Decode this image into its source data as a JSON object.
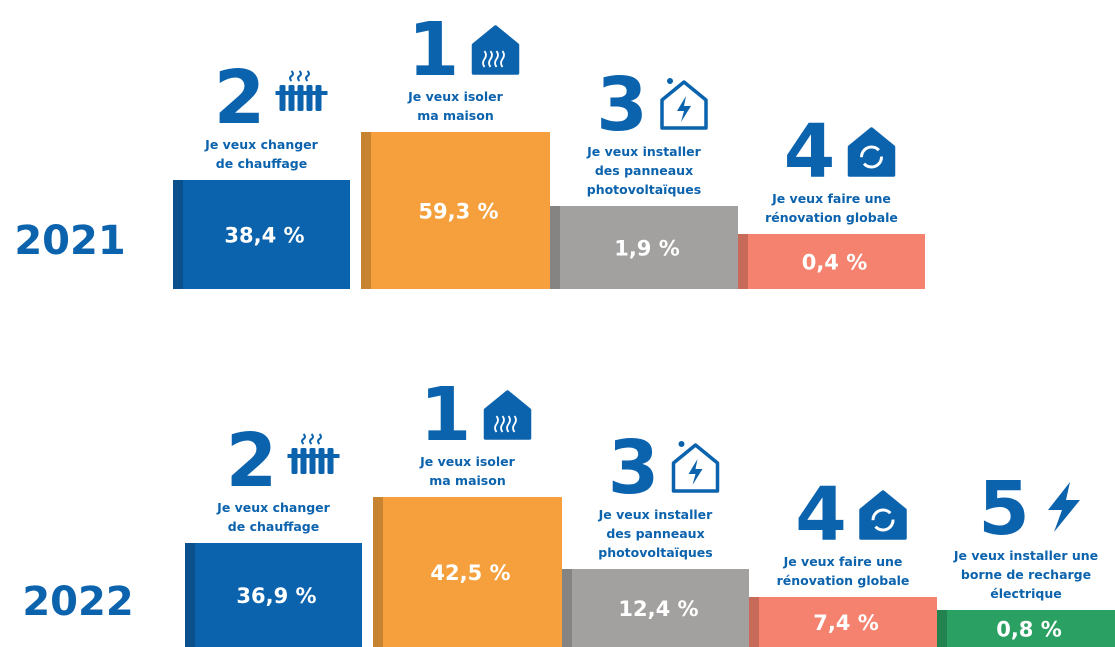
{
  "podiums": [
    {
      "year": "2021",
      "items": [
        {
          "rank": "2",
          "label": [
            "Je veux changer",
            "de chauffage"
          ],
          "value": "38,4 %"
        },
        {
          "rank": "1",
          "label": [
            "Je veux isoler",
            "ma maison"
          ],
          "value": "59,3 %"
        },
        {
          "rank": "3",
          "label": [
            "Je veux installer",
            "des panneaux",
            "photovoltaïques"
          ],
          "value": "1,9 %"
        },
        {
          "rank": "4",
          "label": [
            "Je veux faire une",
            "rénovation globale"
          ],
          "value": "0,4 %"
        }
      ]
    },
    {
      "year": "2022",
      "items": [
        {
          "rank": "2",
          "label": [
            "Je veux changer",
            "de chauffage"
          ],
          "value": "36,9 %"
        },
        {
          "rank": "1",
          "label": [
            "Je veux isoler",
            "ma maison"
          ],
          "value": "42,5 %"
        },
        {
          "rank": "3",
          "label": [
            "Je veux installer",
            "des panneaux",
            "photovoltaïques"
          ],
          "value": "12,4 %"
        },
        {
          "rank": "4",
          "label": [
            "Je veux faire une",
            "rénovation globale"
          ],
          "value": "7,4 %"
        },
        {
          "rank": "5",
          "label": [
            "Je veux installer une",
            "borne de recharge",
            "électrique"
          ],
          "value": "0,8 %"
        }
      ]
    }
  ]
}
